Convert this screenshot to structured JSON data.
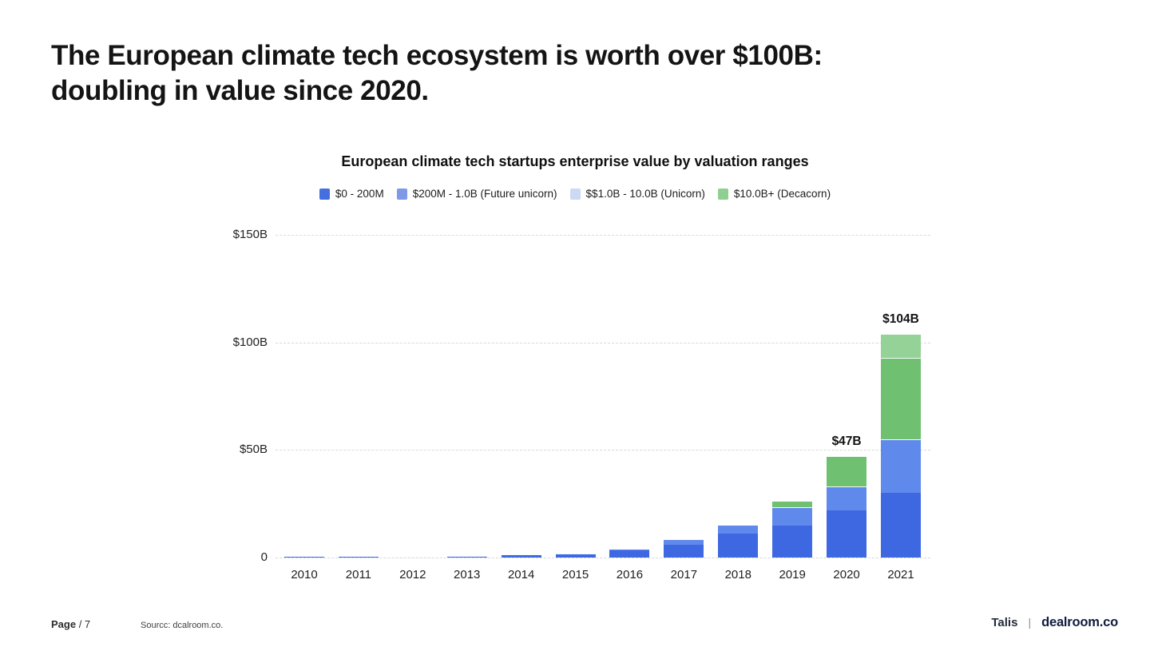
{
  "slide": {
    "title_line1": "The European climate tech ecosystem is worth over $100B:",
    "title_line2": "doubling in value since 2020."
  },
  "chart": {
    "title": "European climate tech startups enterprise value by valuation ranges",
    "legend": [
      {
        "label": "$0 - 200M",
        "swatch_color": "#4470DF"
      },
      {
        "label": "$200M - 1.0B (Future unicorn)",
        "swatch_color": "#7E9AE7"
      },
      {
        "label": "$$1.0B - 10.0B (Unicorn)",
        "swatch_color": "#CBD9F2"
      },
      {
        "label": "$10.0B+ (Decacorn)",
        "swatch_color": "#8FCF92"
      }
    ]
  },
  "chart_data": {
    "type": "bar",
    "stacked": true,
    "title": "European climate tech startups enterprise value by valuation ranges",
    "categories": [
      "2010",
      "2011",
      "2012",
      "2013",
      "2014",
      "2015",
      "2016",
      "2017",
      "2018",
      "2019",
      "2020",
      "2021"
    ],
    "series": [
      {
        "name": "$0 - 200M",
        "color": "#3E68E2",
        "values": [
          0.2,
          0.3,
          0.3,
          0.6,
          1.0,
          1.4,
          3.4,
          6.0,
          11.0,
          15.0,
          22.0,
          30.0
        ]
      },
      {
        "name": "$200M - 1.0B (Future unicorn)",
        "color": "#6089EC",
        "values": [
          0,
          0,
          0.2,
          0.25,
          0.35,
          0.45,
          0.8,
          2.5,
          4.2,
          8.5,
          11.0,
          25.0
        ]
      },
      {
        "name": "$$1.0B - 10.0B (Unicorn)",
        "color": "#6FC071",
        "values": [
          0,
          0,
          0,
          0,
          0,
          0,
          0,
          0,
          0,
          3.0,
          14.0,
          38.0
        ]
      },
      {
        "name": "$10.0B+ (Decacorn)",
        "color": "#95D297",
        "values": [
          0,
          0,
          0,
          0,
          0,
          0,
          0,
          0,
          0,
          0,
          0,
          11.0
        ]
      }
    ],
    "totals_labels": [
      {
        "index": 10,
        "text": "$47B"
      },
      {
        "index": 11,
        "text": "$104B"
      }
    ],
    "ylim": [
      0,
      150
    ],
    "yticks": [
      {
        "value": 0,
        "label": "0"
      },
      {
        "value": 50,
        "label": "$50B"
      },
      {
        "value": 100,
        "label": "$100B"
      },
      {
        "value": 150,
        "label": "$150B"
      }
    ],
    "xlabel": "",
    "ylabel": "",
    "grid": "horizontal-dashed",
    "legend_position": "top-center"
  },
  "footer": {
    "page_label": "Page",
    "page_number": "/ 7",
    "source": "Sourcc: dcalroom.co.",
    "brand_left": "Talis",
    "divider": "|",
    "brand_right": "dealroom.co"
  }
}
